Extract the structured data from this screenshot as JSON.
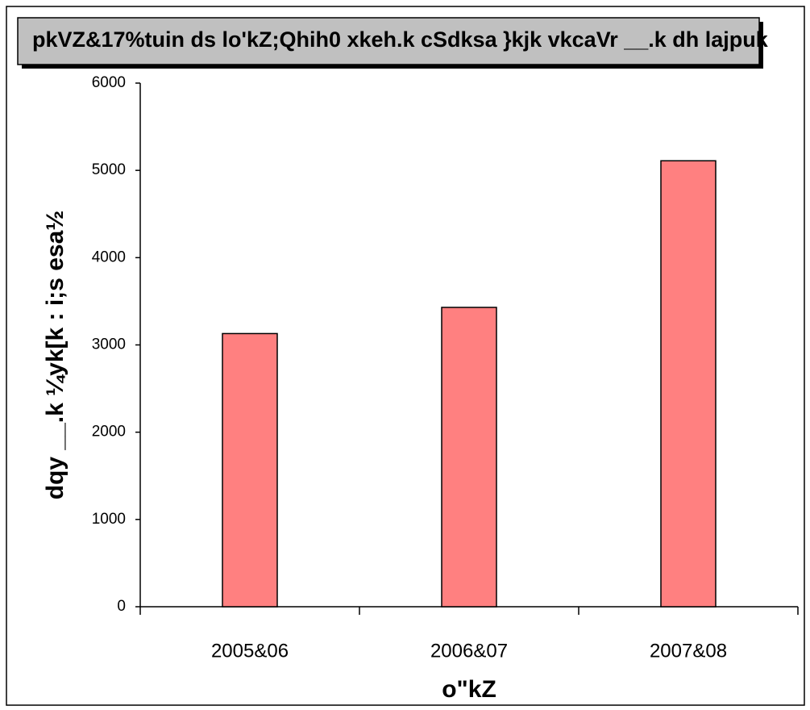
{
  "chart_data": {
    "type": "bar",
    "title": "pkVZ&17%tuin ds lo'kZ;Qhih0 xkeh.k cSdksa }kjk vkcaVr __.k dh lajpuk",
    "y_label": "dqy __.k ¼yk[k : i;s esa½",
    "x_label": "o\"kZ",
    "categories": [
      "2005&06",
      "2006&07",
      "2007&08"
    ],
    "values": [
      3130,
      3430,
      5110
    ],
    "color": "#ff8080",
    "ylim": [
      0,
      6000
    ],
    "yticks": [
      0,
      1000,
      2000,
      3000,
      4000,
      5000,
      6000
    ],
    "grid": false
  }
}
